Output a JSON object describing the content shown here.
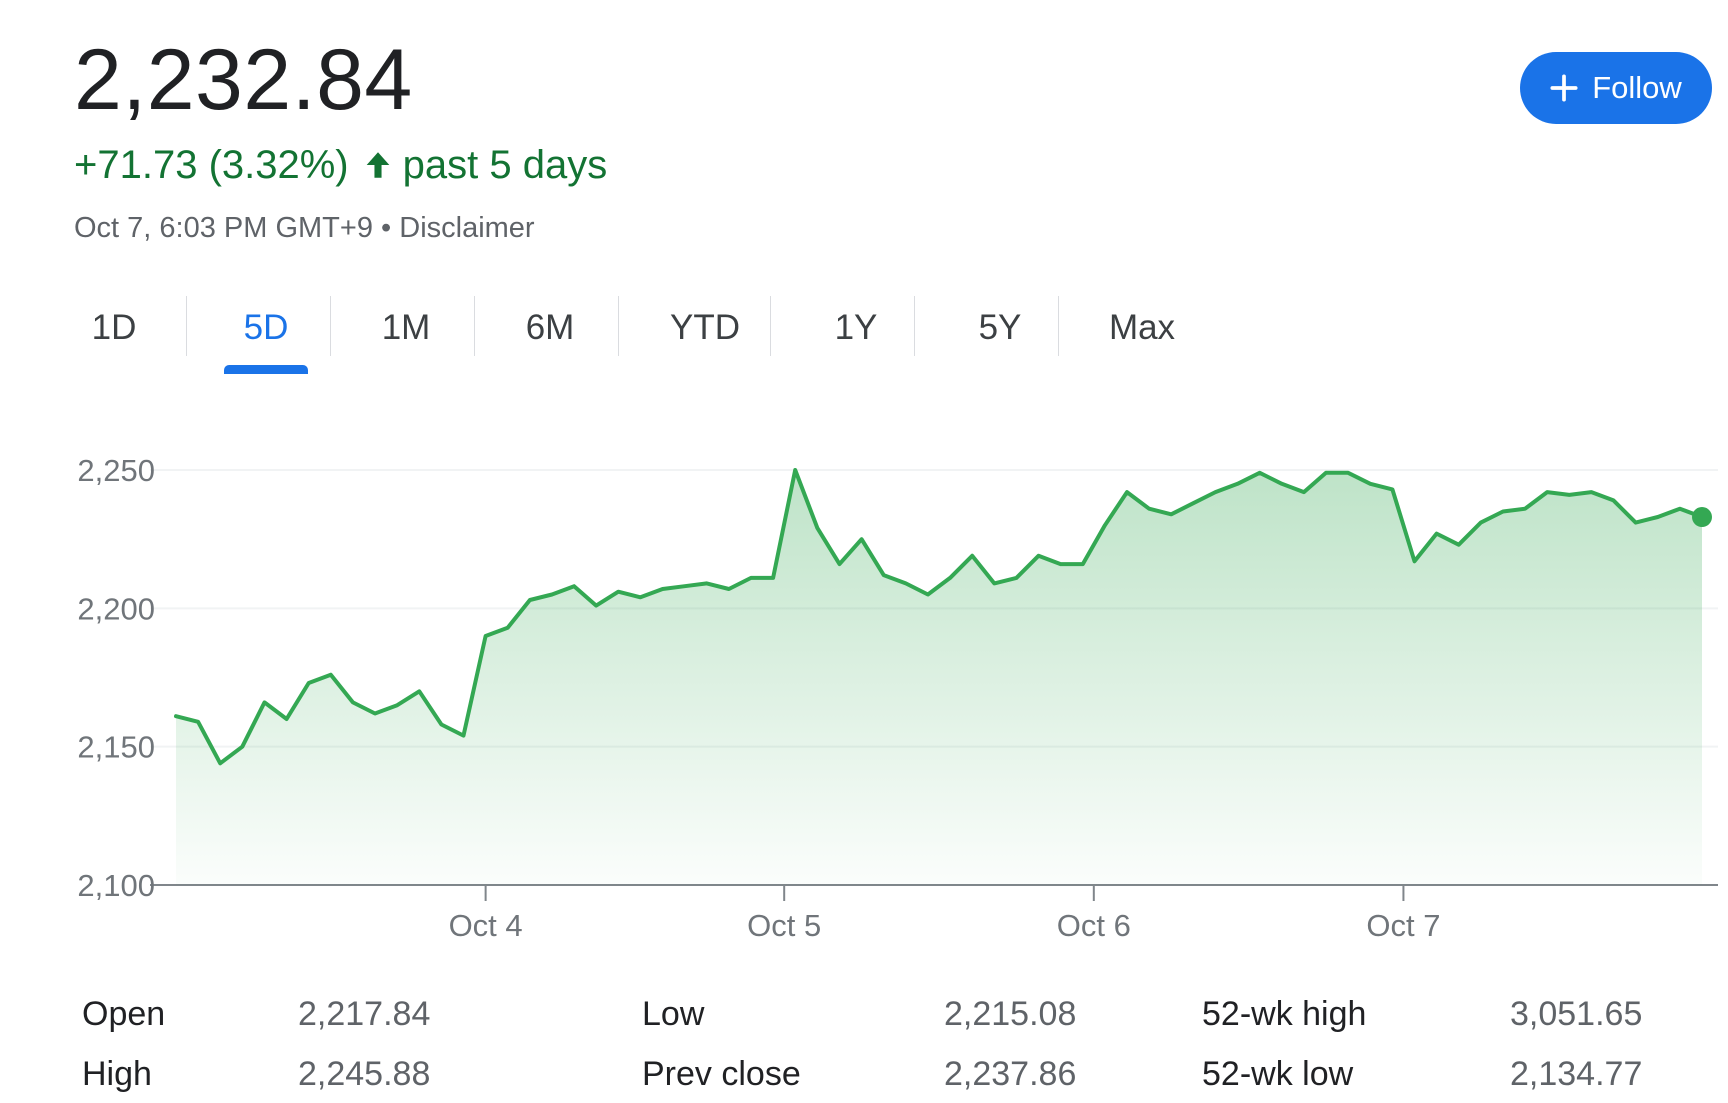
{
  "quote": {
    "price": "2,232.84",
    "change": "+71.73 (3.32%)",
    "period": "past 5 days",
    "timestamp": "Oct 7, 6:03 PM GMT+9",
    "separator": "•",
    "disclaimer": "Disclaimer"
  },
  "follow_button": {
    "label": "Follow",
    "icon": "plus-icon"
  },
  "ranges": {
    "items": [
      "1D",
      "5D",
      "1M",
      "6M",
      "YTD",
      "1Y",
      "5Y",
      "Max"
    ],
    "active": "5D"
  },
  "colors": {
    "accent": "#1a73e8",
    "positive": "#137333",
    "line": "#34a853"
  },
  "chart_data": {
    "type": "area",
    "title": "",
    "xlabel": "",
    "ylabel": "",
    "ylim": [
      2100,
      2250
    ],
    "yticks": [
      2100,
      2150,
      2200,
      2250
    ],
    "ytick_labels": [
      "2,100",
      "2,150",
      "2,200",
      "2,250"
    ],
    "xlim": [
      0,
      69
    ],
    "xticks": [
      {
        "x": 14,
        "label": "Oct 4"
      },
      {
        "x": 27.5,
        "label": "Oct 5"
      },
      {
        "x": 41.5,
        "label": "Oct 6"
      },
      {
        "x": 55.5,
        "label": "Oct 7"
      }
    ],
    "grid": true,
    "series": [
      {
        "values": [
          2161,
          2159,
          2144,
          2150,
          2166,
          2160,
          2173,
          2176,
          2166,
          2162,
          2165,
          2170,
          2158,
          2154,
          2190,
          2193,
          2203,
          2205,
          2208,
          2201,
          2206,
          2204,
          2207,
          2208,
          2209,
          2207,
          2211,
          2211,
          2250,
          2229,
          2216,
          2225,
          2212,
          2209,
          2205,
          2211,
          2219,
          2209,
          2211,
          2219,
          2216,
          2216,
          2230,
          2242,
          2236,
          2234,
          2238,
          2242,
          2245,
          2249,
          2245,
          2242,
          2249,
          2249,
          2245,
          2243,
          2217,
          2227,
          2223,
          2231,
          2235,
          2236,
          2242,
          2241,
          2242,
          2239,
          2231,
          2233,
          2236,
          2233
        ]
      }
    ]
  },
  "stats": {
    "open_label": "Open",
    "open_value": "2,217.84",
    "high_label": "High",
    "high_value": "2,245.88",
    "low_label": "Low",
    "low_value": "2,215.08",
    "prev_close_label": "Prev close",
    "prev_close_value": "2,237.86",
    "wk52_high_label": "52-wk high",
    "wk52_high_value": "3,051.65",
    "wk52_low_label": "52-wk low",
    "wk52_low_value": "2,134.77"
  }
}
